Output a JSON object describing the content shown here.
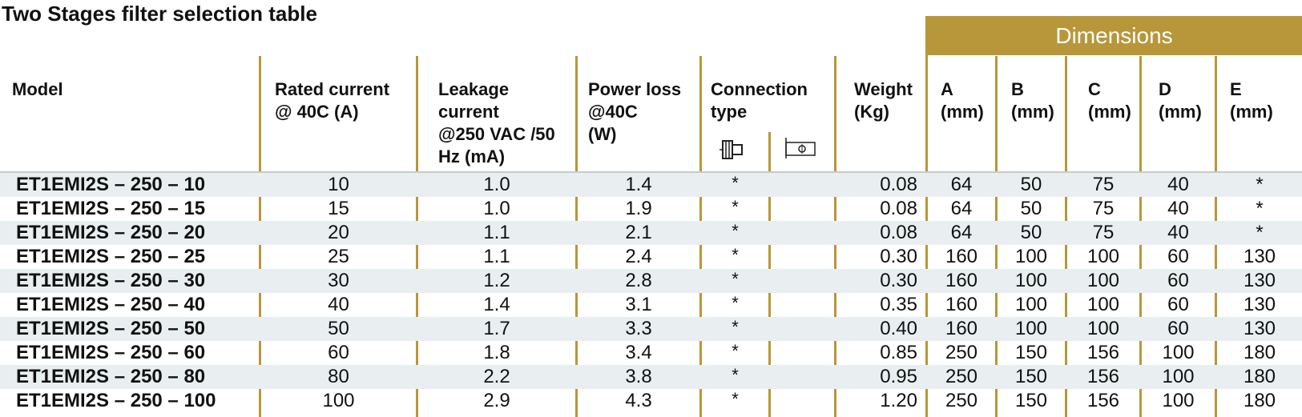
{
  "title": "Two Stages filter selection table",
  "dimensions_header": "Dimensions",
  "columns": {
    "model": "Model",
    "rated": "Rated current\n@ 40C (A)",
    "leakage": "Leakage\ncurrent\n@250 VAC /50\nHz (mA)",
    "power": "Power loss\n@40C\n(W)",
    "connection": "Connection\ntype",
    "weight": "Weight\n(Kg)",
    "a": "A\n(mm)",
    "b": "B\n(mm)",
    "c": "C\n(mm)",
    "d": "D\n(mm)",
    "e": "E\n(mm)"
  },
  "icons": {
    "connection_1": "terminal-block-icon",
    "connection_2": "bolt-terminal-icon"
  },
  "colors": {
    "accent": "#b8973a",
    "row_shade": "#e9eff0"
  },
  "rows": [
    {
      "model": "ET1EMI2S – 250 – 10",
      "rated": "10",
      "leakage": "1.0",
      "power": "1.4",
      "conn1": "*",
      "weight": "0.08",
      "a": "64",
      "b": "50",
      "c": "75",
      "d": "40",
      "e": "*"
    },
    {
      "model": "ET1EMI2S – 250 – 15",
      "rated": "15",
      "leakage": "1.0",
      "power": "1.9",
      "conn1": "*",
      "weight": "0.08",
      "a": "64",
      "b": "50",
      "c": "75",
      "d": "40",
      "e": "*"
    },
    {
      "model": "ET1EMI2S – 250 – 20",
      "rated": "20",
      "leakage": "1.1",
      "power": "2.1",
      "conn1": "*",
      "weight": "0.08",
      "a": "64",
      "b": "50",
      "c": "75",
      "d": "40",
      "e": "*"
    },
    {
      "model": "ET1EMI2S – 250 – 25",
      "rated": "25",
      "leakage": "1.1",
      "power": "2.4",
      "conn1": "*",
      "weight": "0.30",
      "a": "160",
      "b": "100",
      "c": "100",
      "d": "60",
      "e": "130"
    },
    {
      "model": "ET1EMI2S – 250 – 30",
      "rated": "30",
      "leakage": "1.2",
      "power": "2.8",
      "conn1": "*",
      "weight": "0.30",
      "a": "160",
      "b": "100",
      "c": "100",
      "d": "60",
      "e": "130"
    },
    {
      "model": "ET1EMI2S – 250 – 40",
      "rated": "40",
      "leakage": "1.4",
      "power": "3.1",
      "conn1": "*",
      "weight": "0.35",
      "a": "160",
      "b": "100",
      "c": "100",
      "d": "60",
      "e": "130"
    },
    {
      "model": "ET1EMI2S – 250 – 50",
      "rated": "50",
      "leakage": "1.7",
      "power": "3.3",
      "conn1": "*",
      "weight": "0.40",
      "a": "160",
      "b": "100",
      "c": "100",
      "d": "60",
      "e": "130"
    },
    {
      "model": "ET1EMI2S – 250 – 60",
      "rated": "60",
      "leakage": "1.8",
      "power": "3.4",
      "conn1": "*",
      "weight": "0.85",
      "a": "250",
      "b": "150",
      "c": "156",
      "d": "100",
      "e": "180"
    },
    {
      "model": "ET1EMI2S – 250 – 80",
      "rated": "80",
      "leakage": "2.2",
      "power": "3.8",
      "conn1": "*",
      "weight": "0.95",
      "a": "250",
      "b": "150",
      "c": "156",
      "d": "100",
      "e": "180"
    },
    {
      "model": "ET1EMI2S – 250 – 100",
      "rated": "100",
      "leakage": "2.9",
      "power": "4.3",
      "conn1": "*",
      "weight": "1.20",
      "a": "250",
      "b": "150",
      "c": "156",
      "d": "100",
      "e": "180"
    }
  ]
}
